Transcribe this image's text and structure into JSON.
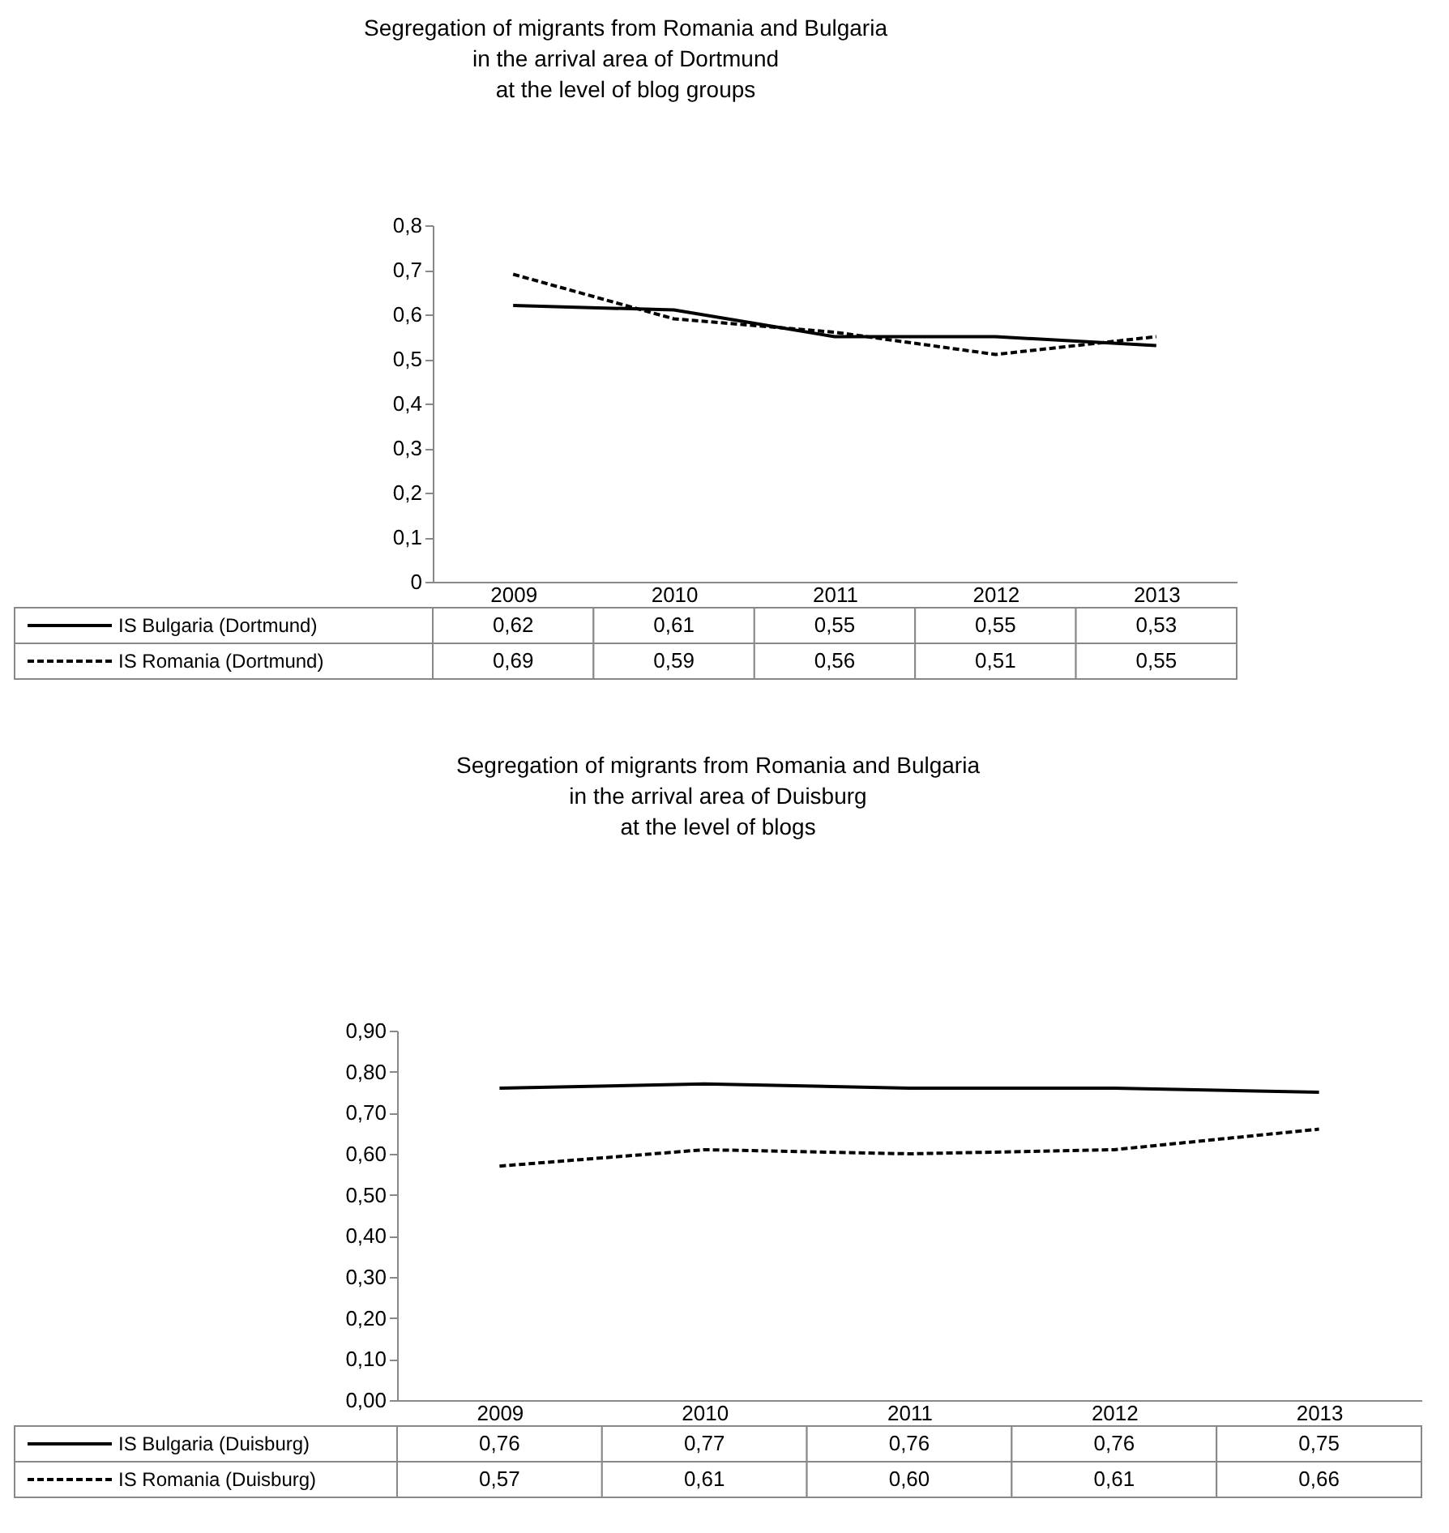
{
  "chart_data": [
    {
      "type": "line",
      "title": [
        "Segregation of migrants from Romania and Bulgaria",
        "in the arrival area of Dortmund",
        "at the level of blog groups"
      ],
      "categories": [
        "2009",
        "2010",
        "2011",
        "2012",
        "2013"
      ],
      "series": [
        {
          "name": "IS Bulgaria (Dortmund)",
          "color": "#000000",
          "line_style": "solid",
          "values": [
            0.62,
            0.61,
            0.55,
            0.55,
            0.53
          ],
          "value_labels": [
            "0,62",
            "0,61",
            "0,55",
            "0,55",
            "0,53"
          ]
        },
        {
          "name": "IS Romania (Dortmund)",
          "color": "#000000",
          "line_style": "dashed",
          "values": [
            0.69,
            0.59,
            0.56,
            0.51,
            0.55
          ],
          "value_labels": [
            "0,69",
            "0,59",
            "0,56",
            "0,51",
            "0,55"
          ]
        }
      ],
      "ylim": [
        0,
        0.8
      ],
      "yticks": [
        0,
        {
          "value": 0.1,
          "label": "0,1"
        },
        {
          "value": 0.2,
          "label": "0,2"
        },
        {
          "value": 0.3,
          "label": "0,3"
        },
        {
          "value": 0.4,
          "label": "0,4"
        },
        {
          "value": 0.5,
          "label": "0,5"
        },
        {
          "value": 0.6,
          "label": "0,6"
        },
        {
          "value": 0.7,
          "label": "0,7"
        },
        {
          "value": 0.8,
          "label": "0,8"
        }
      ],
      "grid": false,
      "legend": "bottom",
      "marker": "none"
    },
    {
      "type": "line",
      "title": [
        "Segregation of migrants from Romania and Bulgaria",
        "in the arrival area of Duisburg",
        "at the level of blogs"
      ],
      "categories": [
        "2009",
        "2010",
        "2011",
        "2012",
        "2013"
      ],
      "series": [
        {
          "name": "IS Bulgaria (Duisburg)",
          "color": "#000000",
          "line_style": "solid",
          "values": [
            0.76,
            0.77,
            0.76,
            0.76,
            0.75
          ],
          "value_labels": [
            "0,76",
            "0,77",
            "0,76",
            "0,76",
            "0,75"
          ]
        },
        {
          "name": "IS Romania (Duisburg)",
          "color": "#000000",
          "line_style": "dashed",
          "values": [
            0.57,
            0.61,
            0.6,
            0.61,
            0.66
          ],
          "value_labels": [
            "0,57",
            "0,61",
            "0,60",
            "0,61",
            "0,66"
          ]
        }
      ],
      "ylim": [
        0,
        0.9
      ],
      "yticks": [
        {
          "value": 0,
          "label": "0,00"
        },
        {
          "value": 0.1,
          "label": "0,10"
        },
        {
          "value": 0.2,
          "label": "0,20"
        },
        {
          "value": 0.3,
          "label": "0,30"
        },
        {
          "value": 0.4,
          "label": "0,40"
        },
        {
          "value": 0.5,
          "label": "0,50"
        },
        {
          "value": 0.6,
          "label": "0,60"
        },
        {
          "value": 0.7,
          "label": "0,70"
        },
        {
          "value": 0.8,
          "label": "0,80"
        },
        {
          "value": 0.9,
          "label": "0,90"
        }
      ],
      "grid": false,
      "legend": "bottom",
      "marker": "none"
    }
  ]
}
